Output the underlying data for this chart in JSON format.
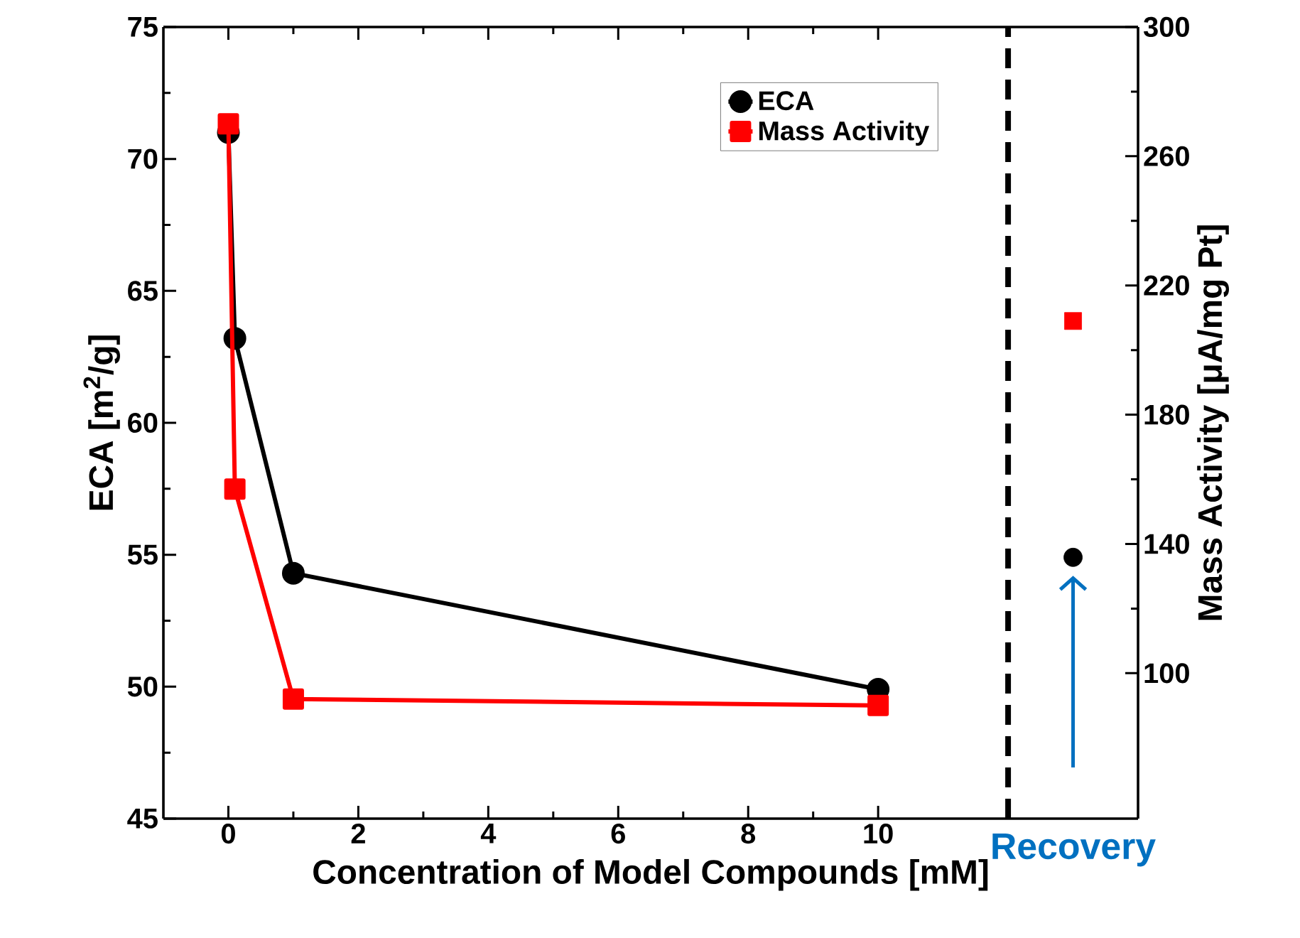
{
  "chart_data": {
    "type": "line",
    "xlabel": "Concentration of Model Compounds [mM]",
    "ylabel": "ECA [m$^{2}$/g]",
    "y2label": "Mass Activity [μA/mg Pt]",
    "xlim": [
      -1,
      14
    ],
    "xticks": [
      0,
      2,
      4,
      6,
      8,
      10
    ],
    "ylim": [
      45,
      75
    ],
    "yticks": [
      45,
      50,
      55,
      60,
      65,
      70,
      75
    ],
    "y2lim": [
      55,
      300
    ],
    "y2ticks": [
      100,
      140,
      180,
      220,
      260,
      300
    ],
    "legend": "top right",
    "line_style": "solid",
    "series": [
      {
        "name": "ECA",
        "color": "#000000",
        "marker": "circle",
        "x": [
          0,
          0.1,
          1,
          10
        ],
        "values": [
          71.0,
          63.2,
          54.3,
          49.9
        ]
      },
      {
        "name": "Mass Activity",
        "color": "#ff0000",
        "marker": "square",
        "axis": "y2",
        "x": [
          0,
          0.1,
          1,
          10
        ],
        "values": [
          270,
          157,
          92,
          90
        ]
      },
      {
        "type": "scatter",
        "color": "#000000",
        "marker": "circle",
        "x": [
          13
        ],
        "values": [
          54.9
        ]
      },
      {
        "type": "scatter",
        "color": "#ff0000",
        "marker": "square",
        "axis": "y2",
        "x": [
          13
        ],
        "values": [
          209
        ]
      }
    ],
    "ref_lines": [
      {
        "axis": "x",
        "value": 12,
        "color": "#000000",
        "line_style": "dashed"
      }
    ],
    "annotations": [
      "Recovery"
    ]
  }
}
